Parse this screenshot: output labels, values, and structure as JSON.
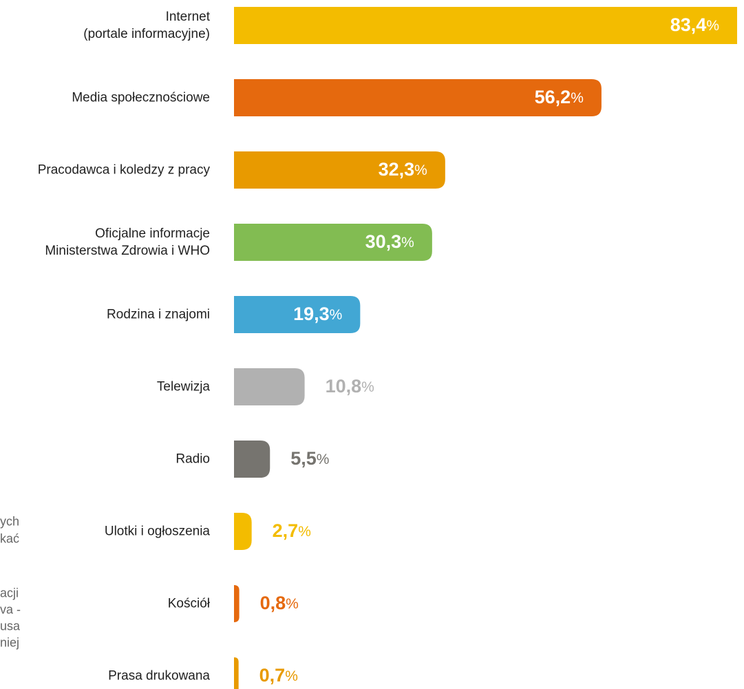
{
  "chart_data": {
    "type": "bar",
    "categories": [
      "Internet\n(portale informacyjne)",
      "Media społecznościowe",
      "Pracodawca i koledzy z pracy",
      "Oficjalne informacje\nMinisterstwa Zdrowia i WHO",
      "Rodzina i znajomi",
      "Telewizja",
      "Radio",
      "Ulotki i ogłoszenia",
      "Kościół",
      "Prasa drukowana"
    ],
    "values": [
      83.4,
      56.2,
      32.3,
      30.3,
      19.3,
      10.8,
      5.5,
      2.7,
      0.8,
      0.7
    ],
    "value_labels": [
      "83,4%",
      "56,2%",
      "32,3%",
      "30,3%",
      "19,3%",
      "10,8%",
      "5,5%",
      "2,7%",
      "0,8%",
      "0,7%"
    ],
    "colors": [
      "#f3bc00",
      "#e5690e",
      "#e89a00",
      "#82bc52",
      "#42a7d4",
      "#b1b1b1",
      "#76746f",
      "#f3bc00",
      "#e5690e",
      "#e89a00"
    ],
    "annotations": [
      "ych",
      "kać",
      "acji",
      "va -",
      "usa",
      "niej"
    ]
  }
}
